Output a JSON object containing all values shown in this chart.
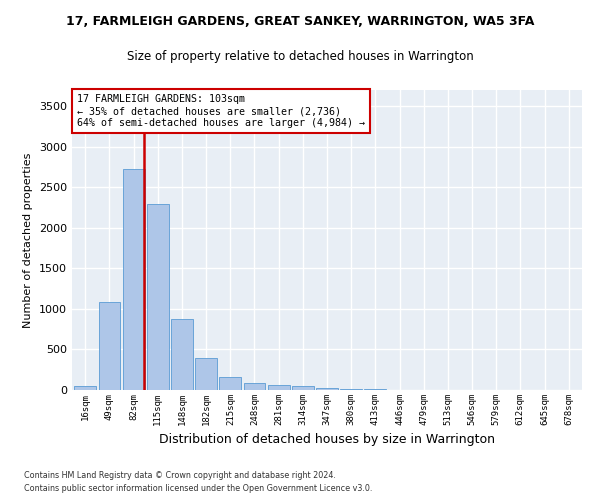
{
  "title": "17, FARMLEIGH GARDENS, GREAT SANKEY, WARRINGTON, WA5 3FA",
  "subtitle": "Size of property relative to detached houses in Warrington",
  "xlabel": "Distribution of detached houses by size in Warrington",
  "ylabel": "Number of detached properties",
  "categories": [
    "16sqm",
    "49sqm",
    "82sqm",
    "115sqm",
    "148sqm",
    "182sqm",
    "215sqm",
    "248sqm",
    "281sqm",
    "314sqm",
    "347sqm",
    "380sqm",
    "413sqm",
    "446sqm",
    "479sqm",
    "513sqm",
    "546sqm",
    "579sqm",
    "612sqm",
    "645sqm",
    "678sqm"
  ],
  "values": [
    50,
    1080,
    2720,
    2300,
    880,
    400,
    160,
    90,
    60,
    50,
    30,
    10,
    10,
    5,
    2,
    1,
    1,
    0,
    0,
    0,
    0
  ],
  "bar_color": "#aec6e8",
  "bar_edge_color": "#5a9bd4",
  "vline_color": "#cc0000",
  "annotation_text": "17 FARMLEIGH GARDENS: 103sqm\n← 35% of detached houses are smaller (2,736)\n64% of semi-detached houses are larger (4,984) →",
  "annotation_box_color": "white",
  "annotation_box_edge": "#cc0000",
  "ylim": [
    0,
    3700
  ],
  "yticks": [
    0,
    500,
    1000,
    1500,
    2000,
    2500,
    3000,
    3500
  ],
  "bg_color": "#e8eef5",
  "footer_line1": "Contains HM Land Registry data © Crown copyright and database right 2024.",
  "footer_line2": "Contains public sector information licensed under the Open Government Licence v3.0."
}
